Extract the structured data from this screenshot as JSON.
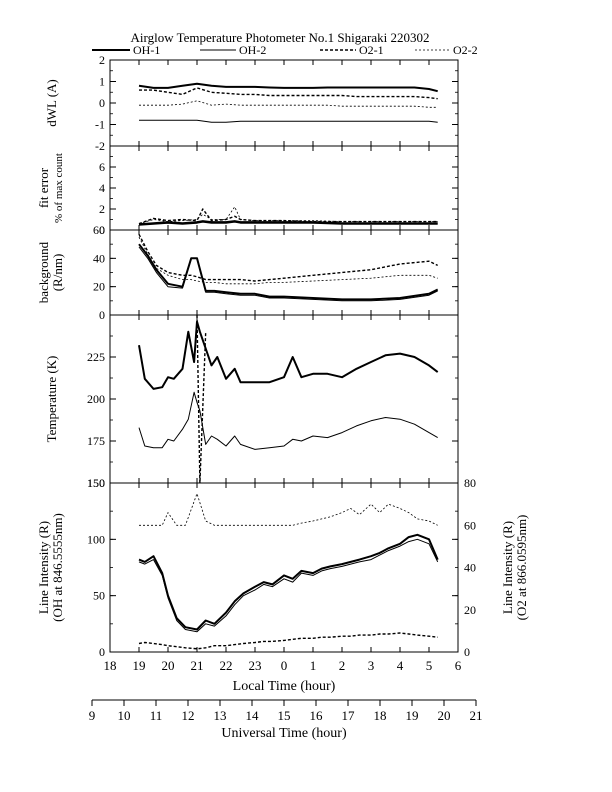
{
  "title": "Airglow Temperature Photometer No.1  Shigaraki   220302",
  "legend": [
    {
      "name": "OH-1",
      "style": "solid-thick"
    },
    {
      "name": "OH-2",
      "style": "solid-thin"
    },
    {
      "name": "O2-1",
      "style": "dashed-thick"
    },
    {
      "name": "O2-2",
      "style": "dashed-thin"
    }
  ],
  "chart_data": [
    {
      "type": "line",
      "ylabel": "dWL (A)",
      "ylim": [
        -2,
        2
      ],
      "yticks": [
        "2",
        "1",
        "0",
        "-1",
        "-2"
      ],
      "x": [
        19.0,
        19.5,
        20.0,
        20.5,
        21.0,
        21.5,
        22.0,
        22.5,
        23.0,
        23.5,
        24.0,
        24.5,
        25.0,
        25.5,
        26.0,
        26.5,
        27.0,
        27.5,
        28.0,
        28.5,
        29.0,
        29.3
      ],
      "series": [
        {
          "name": "OH-1",
          "values": [
            0.8,
            0.7,
            0.7,
            0.8,
            0.9,
            0.8,
            0.75,
            0.75,
            0.75,
            0.72,
            0.7,
            0.7,
            0.7,
            0.72,
            0.72,
            0.72,
            0.72,
            0.72,
            0.72,
            0.72,
            0.65,
            0.55
          ]
        },
        {
          "name": "OH-2",
          "values": [
            -0.8,
            -0.8,
            -0.8,
            -0.8,
            -0.8,
            -0.9,
            -0.9,
            -0.85,
            -0.85,
            -0.85,
            -0.85,
            -0.85,
            -0.85,
            -0.85,
            -0.85,
            -0.85,
            -0.85,
            -0.85,
            -0.85,
            -0.85,
            -0.85,
            -0.9
          ]
        },
        {
          "name": "O2-1",
          "values": [
            0.6,
            0.6,
            0.5,
            0.4,
            0.7,
            0.5,
            0.45,
            0.4,
            0.4,
            0.35,
            0.35,
            0.35,
            0.35,
            0.35,
            0.35,
            0.3,
            0.3,
            0.3,
            0.3,
            0.3,
            0.25,
            0.2
          ]
        },
        {
          "name": "O2-2",
          "values": [
            -0.1,
            -0.1,
            -0.1,
            -0.05,
            0.1,
            -0.1,
            -0.05,
            -0.1,
            -0.1,
            -0.1,
            -0.1,
            -0.1,
            -0.1,
            -0.1,
            -0.15,
            -0.15,
            -0.15,
            -0.15,
            -0.15,
            -0.15,
            -0.2,
            -0.2
          ]
        }
      ]
    },
    {
      "type": "line",
      "ylabel": "fit error",
      "ylabel2": "% of max count",
      "ylim": [
        0,
        8
      ],
      "yticks": [
        "6",
        "4",
        "2",
        "0"
      ],
      "x": [
        19.0,
        19.5,
        20.0,
        20.5,
        21.0,
        21.2,
        21.5,
        22.0,
        22.3,
        22.5,
        23.0,
        24.0,
        25.0,
        26.0,
        27.0,
        28.0,
        29.0,
        29.3
      ],
      "series": [
        {
          "name": "OH-1",
          "values": [
            0.5,
            0.6,
            0.7,
            0.6,
            0.7,
            0.8,
            0.7,
            0.7,
            0.8,
            0.7,
            0.7,
            0.7,
            0.7,
            0.6,
            0.6,
            0.6,
            0.6,
            0.6
          ]
        },
        {
          "name": "OH-2",
          "values": [
            0.6,
            0.7,
            0.8,
            0.7,
            0.8,
            0.9,
            0.8,
            0.8,
            0.9,
            0.8,
            0.8,
            0.8,
            0.8,
            0.7,
            0.7,
            0.7,
            0.7,
            0.7
          ]
        },
        {
          "name": "O2-1",
          "values": [
            0.6,
            1.1,
            0.9,
            1.0,
            0.9,
            2.0,
            0.9,
            1.0,
            1.3,
            1.0,
            0.9,
            0.9,
            0.8,
            0.8,
            0.8,
            0.8,
            0.8,
            0.8
          ]
        },
        {
          "name": "O2-2",
          "values": [
            0.6,
            1.0,
            0.8,
            0.9,
            1.0,
            1.5,
            1.0,
            1.0,
            2.2,
            1.0,
            0.9,
            0.9,
            0.9,
            0.8,
            0.8,
            0.8,
            0.8,
            0.8
          ]
        }
      ]
    },
    {
      "type": "line",
      "ylabel": "background",
      "ylabel2": "(R/nm)",
      "ylim": [
        0,
        60
      ],
      "yticks": [
        "60",
        "40",
        "20",
        "0"
      ],
      "x": [
        19.0,
        19.3,
        19.6,
        20.0,
        20.5,
        20.8,
        21.0,
        21.3,
        21.6,
        22.0,
        22.5,
        23.0,
        23.5,
        24.0,
        25.0,
        26.0,
        27.0,
        28.0,
        29.0,
        29.3
      ],
      "series": [
        {
          "name": "OH-1",
          "values": [
            50,
            42,
            32,
            22,
            20,
            40,
            40,
            17,
            17,
            16,
            15,
            15,
            13,
            13,
            12,
            11,
            11,
            12,
            15,
            18
          ]
        },
        {
          "name": "OH-2",
          "values": [
            48,
            40,
            30,
            20,
            19,
            40,
            40,
            16,
            16,
            15,
            14,
            14,
            12,
            12,
            11,
            10,
            10,
            11,
            14,
            17
          ]
        },
        {
          "name": "O2-1",
          "values": [
            57,
            45,
            35,
            30,
            28,
            28,
            27,
            25,
            25,
            25,
            25,
            24,
            25,
            26,
            28,
            30,
            32,
            36,
            38,
            35
          ]
        },
        {
          "name": "O2-2",
          "values": [
            55,
            43,
            33,
            28,
            25,
            25,
            24,
            23,
            23,
            22,
            22,
            22,
            23,
            23,
            24,
            25,
            26,
            28,
            28,
            26
          ]
        }
      ]
    },
    {
      "type": "line",
      "ylabel": "Temperature (K)",
      "ylim": [
        150,
        250
      ],
      "yticks": [
        "225",
        "200",
        "175",
        "150"
      ],
      "x": [
        19.0,
        19.2,
        19.5,
        19.8,
        20.0,
        20.2,
        20.5,
        20.7,
        20.9,
        21.0,
        21.1,
        21.3,
        21.5,
        21.7,
        22.0,
        22.3,
        22.5,
        23.0,
        23.5,
        24.0,
        24.3,
        24.6,
        25.0,
        25.5,
        26.0,
        26.5,
        27.0,
        27.5,
        28.0,
        28.5,
        29.0,
        29.3
      ],
      "series": [
        {
          "name": "OH-1",
          "values": [
            232,
            212,
            206,
            207,
            213,
            212,
            218,
            240,
            222,
            246,
            240,
            230,
            220,
            225,
            212,
            218,
            210,
            210,
            210,
            213,
            225,
            213,
            215,
            215,
            213,
            218,
            222,
            226,
            227,
            225,
            220,
            216
          ]
        },
        {
          "name": "OH-2",
          "values": [
            183,
            172,
            171,
            171,
            176,
            175,
            182,
            188,
            204,
            198,
            193,
            173,
            178,
            176,
            172,
            178,
            173,
            170,
            171,
            172,
            176,
            175,
            178,
            177,
            180,
            184,
            187,
            189,
            188,
            185,
            180,
            177
          ]
        },
        {
          "name": "O2-1",
          "values": [
            178,
            null,
            null,
            null,
            null,
            null,
            null,
            null,
            null,
            250,
            150,
            240,
            null,
            null,
            null,
            null,
            null,
            null,
            null,
            null,
            null,
            null,
            null,
            null,
            null,
            null,
            null,
            null,
            null,
            null,
            null,
            null
          ]
        }
      ]
    },
    {
      "type": "line",
      "ylabel": "Line Intensity (R)",
      "ylabel2": "(OH at 846.5555nm)",
      "ylim": [
        0,
        150
      ],
      "yticks": [
        "150",
        "100",
        "50",
        "0"
      ],
      "y2label": "Line Intensity (R)",
      "y2label2": "(O2 at 866.0595nm)",
      "y2lim": [
        0,
        80
      ],
      "y2ticks": [
        "80",
        "60",
        "40",
        "20",
        "0"
      ],
      "x": [
        19.0,
        19.2,
        19.5,
        19.8,
        20.0,
        20.3,
        20.6,
        21.0,
        21.3,
        21.6,
        22.0,
        22.3,
        22.6,
        23.0,
        23.3,
        23.6,
        24.0,
        24.3,
        24.6,
        25.0,
        25.3,
        25.6,
        26.0,
        26.3,
        26.6,
        27.0,
        27.3,
        27.6,
        28.0,
        28.3,
        28.6,
        29.0,
        29.3
      ],
      "xlabel": "Local Time (hour)",
      "xticks": [
        "18",
        "19",
        "20",
        "21",
        "22",
        "23",
        "0",
        "1",
        "2",
        "3",
        "4",
        "5",
        "6"
      ],
      "x2label": "Universal Time (hour)",
      "x2ticks": [
        "9",
        "10",
        "11",
        "12",
        "13",
        "14",
        "15",
        "16",
        "17",
        "18",
        "19",
        "20",
        "21"
      ],
      "series": [
        {
          "name": "OH-1",
          "values": [
            82,
            80,
            85,
            70,
            50,
            30,
            22,
            20,
            28,
            25,
            35,
            45,
            52,
            58,
            62,
            60,
            68,
            65,
            72,
            70,
            74,
            76,
            78,
            80,
            82,
            85,
            88,
            92,
            96,
            102,
            104,
            100,
            82
          ]
        },
        {
          "name": "OH-2",
          "values": [
            80,
            78,
            82,
            68,
            48,
            28,
            20,
            18,
            25,
            23,
            32,
            42,
            50,
            55,
            60,
            58,
            65,
            62,
            70,
            68,
            72,
            74,
            76,
            78,
            80,
            82,
            86,
            90,
            94,
            98,
            100,
            96,
            80
          ]
        },
        {
          "name": "O2-1",
          "values": [
            4,
            4.5,
            4,
            3.5,
            3,
            2.5,
            2,
            1.5,
            2,
            3,
            3,
            3.5,
            4,
            4.5,
            5,
            5,
            5.5,
            6,
            6.5,
            6.5,
            7,
            7,
            7.5,
            7.5,
            8,
            8,
            8.5,
            8.5,
            9,
            8.5,
            8,
            7.5,
            7
          ]
        },
        {
          "name": "O2-2",
          "values": [
            60,
            60,
            60,
            60,
            66,
            60,
            60,
            75,
            62,
            60,
            60,
            60,
            60,
            60,
            60,
            60,
            60,
            60,
            61,
            62,
            63,
            64,
            66,
            68,
            65,
            70,
            66,
            70,
            68,
            66,
            63,
            62,
            60
          ]
        }
      ]
    }
  ]
}
